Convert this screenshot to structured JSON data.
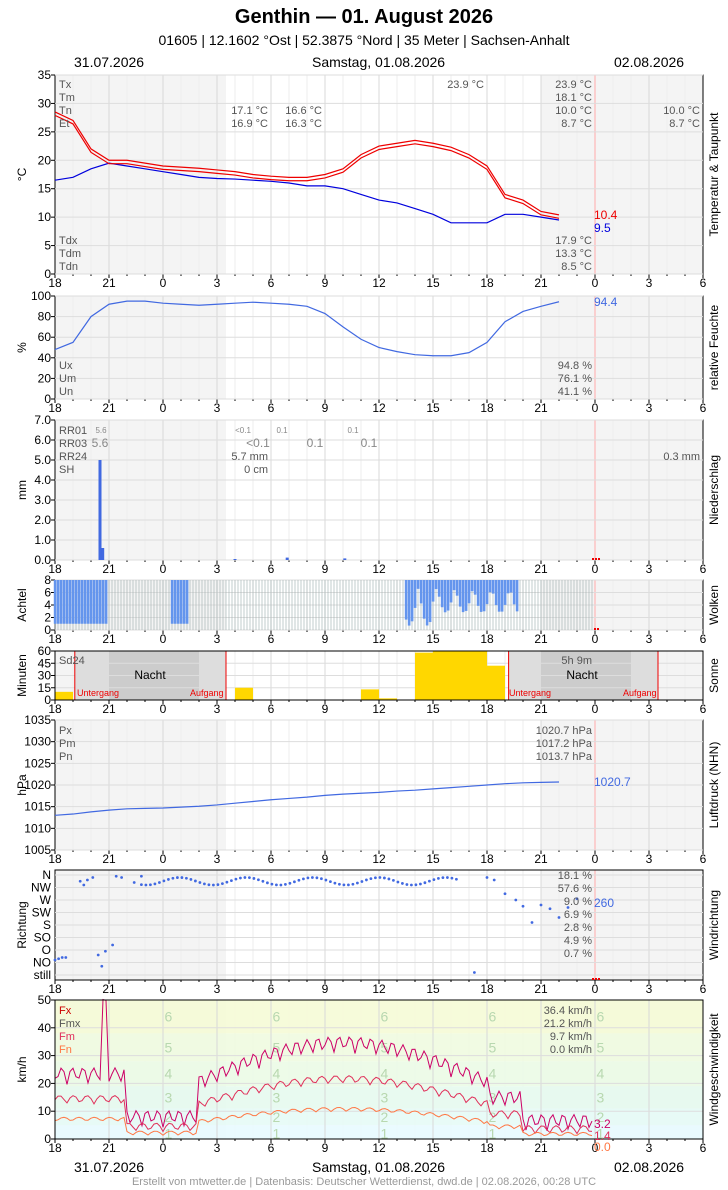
{
  "header": {
    "title": "Genthin  —  01. August 2026",
    "subtitle": "01605  |  12.1602 °Ost  |  52.3875 °Nord  |  35 Meter  |  Sachsen-Anhalt",
    "date_left": "31.07.2026",
    "date_center": "Samstag, 01.08.2026",
    "date_right": "02.08.2026"
  },
  "footer": "Erstellt von mtwetter.de | Datenbasis: Deutscher Wetterdienst, dwd.de | 02.08.2026, 00:28 UTC",
  "x_ticks": [
    "18",
    "21",
    "0",
    "3",
    "6",
    "9",
    "12",
    "15",
    "18",
    "21",
    "0",
    "3",
    "6"
  ],
  "colors": {
    "red": "#ee0000",
    "blue": "#0000dd",
    "royal": "#4169e1",
    "gold": "#ffd700",
    "magenta": "#cc0066",
    "orange": "#ff7744",
    "grid": "#dddddd",
    "night": "#cccccc"
  },
  "chart_data": [
    {
      "type": "line",
      "title": "Temperatur & Taupunkt",
      "ylabel": "°C",
      "ylim": [
        0,
        35
      ],
      "yticks": [
        0,
        5,
        10,
        15,
        20,
        25,
        30,
        35
      ],
      "x_hours": [
        -6,
        -5,
        -4,
        -3,
        -2,
        -1,
        0,
        1,
        2,
        3,
        4,
        5,
        6,
        7,
        8,
        9,
        10,
        11,
        12,
        13,
        14,
        15,
        16,
        17,
        18,
        19,
        20,
        21,
        22,
        23,
        24
      ],
      "series": [
        {
          "name": "Temperatur",
          "color": "#ee0000",
          "values": [
            28.5,
            27,
            22,
            20,
            20,
            19.5,
            19,
            18.8,
            18.6,
            18.3,
            18,
            17.5,
            17.2,
            17,
            17,
            17.5,
            18.5,
            21,
            22.5,
            23,
            23.5,
            23,
            22.3,
            21,
            19,
            14,
            13,
            11,
            10.4,
            null,
            null
          ]
        },
        {
          "name": "Taupunkt",
          "color": "#0000dd",
          "values": [
            16.5,
            17,
            18.5,
            19.5,
            19,
            18.5,
            18,
            17.5,
            17,
            16.8,
            16.7,
            16.5,
            16.3,
            16,
            15.5,
            15.5,
            15,
            14,
            13,
            12.5,
            11.5,
            10.5,
            9,
            9,
            9,
            10.5,
            10.5,
            10,
            9.5,
            null,
            null
          ]
        }
      ],
      "labels": {
        "Tx": "23.9 °C",
        "Tm": "18.1 °C",
        "Tn": "10.0 °C",
        "Et": "8.7 °C",
        "Tdx": "17.9 °C",
        "Tdm": "13.3 °C",
        "Tdn": "8.5 °C",
        "max_mid": "23.9 °C",
        "t1a": "17.1 °C",
        "t1b": "16.9 °C",
        "t2a": "16.6 °C",
        "t2b": "16.3 °C",
        "right_a": "10.0 °C",
        "right_b": "8.7 °C",
        "end_t": "10.4",
        "end_td": "9.5"
      }
    },
    {
      "type": "line",
      "title": "relative Feuchte",
      "ylabel": "%",
      "ylim": [
        0,
        100
      ],
      "yticks": [
        0,
        20,
        40,
        60,
        80,
        100
      ],
      "series": [
        {
          "name": "relative Feuchte",
          "color": "#4169e1",
          "values": [
            48,
            55,
            80,
            92,
            95,
            95,
            93,
            92,
            91,
            92,
            93,
            94,
            93,
            92,
            90,
            83,
            70,
            58,
            50,
            46,
            43,
            42,
            42,
            45,
            55,
            75,
            85,
            90,
            94.4,
            null,
            null
          ]
        }
      ],
      "labels": {
        "Ux": "94.8 %",
        "Um": "76.1 %",
        "Un": "41.1 %",
        "end": "94.4"
      }
    },
    {
      "type": "bar",
      "title": "Niederschlag",
      "ylabel": "mm",
      "ylim": [
        0,
        7
      ],
      "yticks": [
        "0.0",
        "1.0",
        "2.0",
        "3.0",
        "4.0",
        "5.0",
        "6.0",
        "7.0"
      ],
      "bars": [
        {
          "x": -3.5,
          "v": 5.0
        },
        {
          "x": -3.35,
          "v": 0.6
        },
        {
          "x": 4.0,
          "v": 0.05
        },
        {
          "x": 6.9,
          "v": 0.12
        },
        {
          "x": 10.1,
          "v": 0.08
        }
      ],
      "labels": {
        "RR01": "RR01",
        "RR03": "RR03",
        "RR24": "RR24",
        "SH": "SH",
        "rr01a": "5.6",
        "rr03a": "5.6",
        "rr01b": "<0.1",
        "rr03b": "<0.1",
        "rr24": "5.7 mm",
        "sh": "0 cm",
        "rr01c": "0.1",
        "rr03c": "0.1",
        "rr01d": "0.1",
        "rr03d": "0.1",
        "right": "0.3 mm"
      }
    },
    {
      "type": "bar",
      "title": "Wolken",
      "ylabel": "Achtel",
      "ylim": [
        0,
        8
      ],
      "yticks": [
        0,
        2,
        4,
        6,
        8
      ]
    },
    {
      "type": "bar",
      "title": "Sonne",
      "ylabel": "Minuten",
      "ylim": [
        0,
        60
      ],
      "yticks": [
        0,
        15,
        30,
        45,
        60
      ],
      "bars": [
        {
          "x": -6,
          "v": 10
        },
        {
          "x": 4,
          "v": 15
        },
        {
          "x": 11,
          "v": 13
        },
        {
          "x": 12,
          "v": 2
        },
        {
          "x": 14,
          "v": 58
        },
        {
          "x": 15,
          "v": 60
        },
        {
          "x": 16,
          "v": 60
        },
        {
          "x": 17,
          "v": 60
        },
        {
          "x": 18,
          "v": 42
        }
      ],
      "labels": {
        "Sd24": "Sd24",
        "night": "Nacht",
        "sunset": "Untergang",
        "sunrise": "Aufgang",
        "sd": "5h 9m"
      }
    },
    {
      "type": "line",
      "title": "Luftdruck (NHN)",
      "ylabel": "hPa",
      "ylim": [
        1005,
        1035
      ],
      "yticks": [
        1005,
        1010,
        1015,
        1020,
        1025,
        1030,
        1035
      ],
      "series": [
        {
          "name": "Luftdruck",
          "color": "#4169e1",
          "values": [
            1013.0,
            1013.3,
            1013.8,
            1014.2,
            1014.5,
            1014.6,
            1014.7,
            1014.9,
            1015.1,
            1015.4,
            1015.8,
            1016.2,
            1016.6,
            1016.9,
            1017.2,
            1017.6,
            1017.9,
            1018.1,
            1018.3,
            1018.6,
            1018.8,
            1019.1,
            1019.4,
            1019.7,
            1020.0,
            1020.3,
            1020.5,
            1020.6,
            1020.7,
            null,
            null
          ]
        }
      ],
      "labels": {
        "Px": "1020.7 hPa",
        "Pm": "1017.2 hPa",
        "Pn": "1013.7 hPa",
        "end": "1020.7"
      }
    },
    {
      "type": "scatter",
      "title": "Windrichtung",
      "ylabel": "Richtung",
      "categories": [
        "still",
        "NO",
        "O",
        "SO",
        "S",
        "SW",
        "W",
        "NW",
        "N"
      ],
      "labels": {
        "p1": "18.1 %",
        "p2": "57.6 %",
        "p3": "9.0 %",
        "p4": "6.9 %",
        "p5": "2.8 %",
        "p6": "4.9 %",
        "p7": "0.7 %",
        "end": "260"
      }
    },
    {
      "type": "line",
      "title": "Windgeschwindigkeit",
      "ylabel": "km/h",
      "ylim": [
        0,
        50
      ],
      "yticks": [
        0,
        10,
        20,
        30,
        40,
        50
      ],
      "beaufort": [
        "1",
        "2",
        "3",
        "4",
        "5",
        "6"
      ],
      "labels": {
        "Fx": "36.4 km/h",
        "Fmx": "21.2 km/h",
        "Fm": "9.7 km/h",
        "Fn": "0.0 km/h",
        "end_fx": "3.2",
        "end_fm": "1.4",
        "end_fn": "0.0"
      }
    }
  ]
}
